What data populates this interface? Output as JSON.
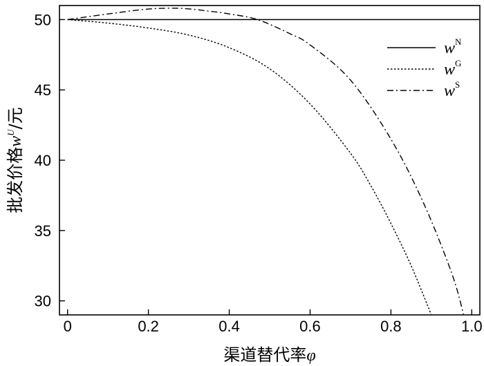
{
  "chart_data": {
    "type": "line",
    "xlabel_text": "渠道替代率",
    "xlabel_symbol": "φ",
    "ylabel_text": "批发价格",
    "ylabel_symbol": "w",
    "ylabel_sup": "U",
    "ylabel_unit": "/元",
    "xlim": [
      -0.02,
      1.02
    ],
    "ylim": [
      29,
      51
    ],
    "xticks": [
      0,
      0.2,
      0.4,
      0.6,
      0.8,
      1.0
    ],
    "xtick_labels": [
      "0",
      "0.2",
      "0.4",
      "0.6",
      "0.8",
      "1.0"
    ],
    "yticks": [
      30,
      35,
      40,
      45,
      50
    ],
    "ytick_labels": [
      "30",
      "35",
      "40",
      "45",
      "50"
    ],
    "grid": false,
    "legend_position": "top-right",
    "series": [
      {
        "name": "w",
        "sup": "N",
        "style": "solid",
        "x": [
          0,
          1.02
        ],
        "y": [
          50,
          50
        ]
      },
      {
        "name": "w",
        "sup": "G",
        "style": "dotted",
        "x": [
          0,
          0.1,
          0.2,
          0.3,
          0.4,
          0.5,
          0.6,
          0.7,
          0.75,
          0.8,
          0.85,
          0.9
        ],
        "y": [
          50,
          49.75,
          49.4,
          48.9,
          48.0,
          46.5,
          44.0,
          40.5,
          38.2,
          35.5,
          32.5,
          29.0
        ]
      },
      {
        "name": "w",
        "sup": "S",
        "style": "dashdot",
        "x": [
          0,
          0.1,
          0.2,
          0.28,
          0.35,
          0.4,
          0.47,
          0.55,
          0.6,
          0.7,
          0.8,
          0.88,
          0.95,
          0.98
        ],
        "y": [
          50,
          50.4,
          50.75,
          50.8,
          50.6,
          50.4,
          50.0,
          49.0,
          48.2,
          45.7,
          41.5,
          37.0,
          32.0,
          29.0
        ]
      }
    ]
  }
}
